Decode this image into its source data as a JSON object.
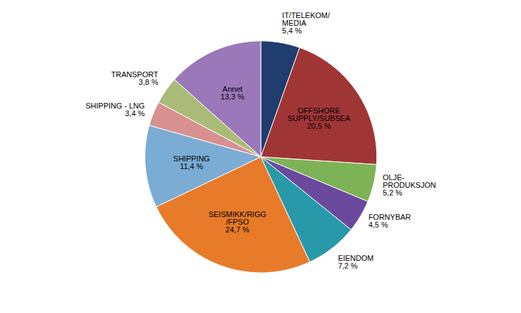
{
  "chart_data": {
    "type": "pie",
    "categories": [
      "IT/TELEKOM/\nMEDIA",
      "OFFSHORE\nSUPPLY/SUBSEA",
      "OLJE-\nPRODUKSJON",
      "FORNYBAR",
      "EIENDOM",
      "SEISMIKK/RIGG\n/FPSO",
      "SHIPPING",
      "SHIPPING - LNG",
      "TRANSPORT",
      "Annet"
    ],
    "values": [
      5.4,
      20.5,
      5.2,
      4.5,
      7.2,
      24.7,
      11.4,
      3.4,
      3.8,
      13.3
    ],
    "value_labels": [
      "5,4 %",
      "20,5 %",
      "5,2 %",
      "4,5 %",
      "7,2 %",
      "24,7 %",
      "11,4 %",
      "3,4 %",
      "3,8 %",
      "13,3 %"
    ],
    "colors": [
      "#1F3D6E",
      "#A03535",
      "#7DB356",
      "#6B4A9E",
      "#2899A8",
      "#E87B2A",
      "#7AACD4",
      "#D89090",
      "#AABB78",
      "#9B78BA"
    ],
    "data_labels": true
  }
}
